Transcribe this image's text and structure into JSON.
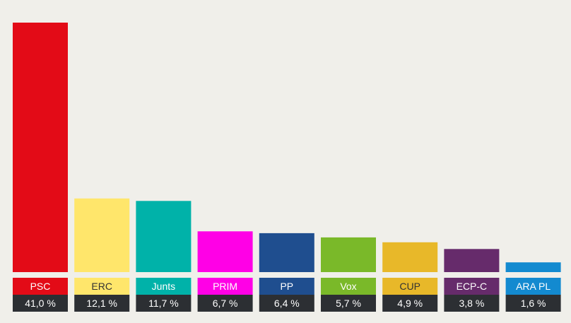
{
  "chart_data": {
    "type": "bar",
    "title": "",
    "xlabel": "",
    "ylabel": "",
    "ylim": [
      0,
      41.0
    ],
    "grid": false,
    "legend": "none",
    "categories": [
      "PSC",
      "ERC",
      "Junts",
      "PRIM",
      "PP",
      "Vox",
      "CUP",
      "ECP-C",
      "ARA PL"
    ],
    "values": [
      41.0,
      12.1,
      11.7,
      6.7,
      6.4,
      5.7,
      4.9,
      3.8,
      1.6
    ],
    "value_labels": [
      "41,0 %",
      "12,1 %",
      "11,7 %",
      "6,7 %",
      "6,4 %",
      "5,7 %",
      "4,9 %",
      "3,8 %",
      "1,6 %"
    ],
    "colors": [
      "#e30b17",
      "#ffe66b",
      "#00b2a9",
      "#ff00e6",
      "#1f4e8f",
      "#7ab929",
      "#e8b829",
      "#662b6b",
      "#138ad0"
    ],
    "label_text_colors": [
      "#ffffff",
      "#333333",
      "#ffffff",
      "#ffffff",
      "#ffffff",
      "#ffffff",
      "#333333",
      "#ffffff",
      "#ffffff"
    ],
    "value_box_color": "#2c2f33",
    "background": "#f0efea"
  }
}
